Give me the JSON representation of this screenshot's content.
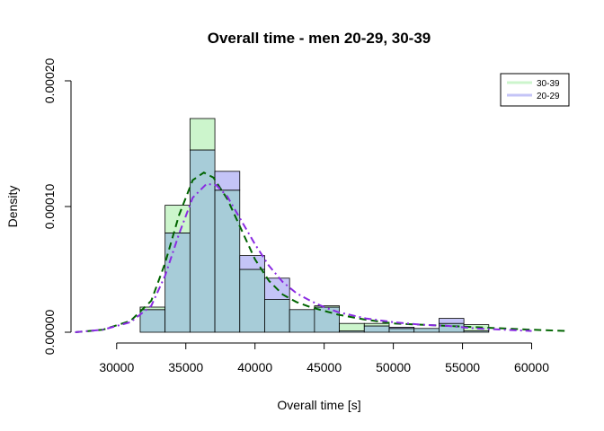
{
  "chart_data": {
    "type": "bar",
    "title": "Overall time - men 20-29, 30-39",
    "xlabel": "Overall time [s]",
    "ylabel": "Density",
    "xlim": [
      26700,
      62500
    ],
    "ylim": [
      0,
      0.0002
    ],
    "x_ticks": [
      30000,
      35000,
      40000,
      45000,
      50000,
      55000,
      60000
    ],
    "x_tick_labels": [
      "30000",
      "35000",
      "40000",
      "45000",
      "50000",
      "55000",
      "60000"
    ],
    "y_ticks": [
      0,
      0.0001,
      0.0002
    ],
    "y_tick_labels": [
      "0.00000",
      "0.00010",
      "0.00020"
    ],
    "grid": false,
    "legend_position": "top-right",
    "bin_width": 1800,
    "bin_start": 31700,
    "series": [
      {
        "name": "30-39",
        "color": "#ccf5cc",
        "density_color": "#006400",
        "values": [
          2e-05,
          0.000101,
          0.00017,
          0.000113,
          5e-05,
          2.6e-05,
          1.8e-05,
          2.1e-05,
          7e-06,
          7e-06,
          3e-06,
          3e-06,
          7e-06,
          6e-06
        ]
      },
      {
        "name": "20-29",
        "color": "#c4c4f7",
        "density_color": "#8a2be2",
        "values": [
          1.8e-05,
          7.9e-05,
          0.000145,
          0.000128,
          6.1e-05,
          4.3e-05,
          1.8e-05,
          2e-05,
          1e-06,
          5e-06,
          4e-06,
          3e-06,
          1.1e-05,
          1e-06
        ]
      }
    ],
    "overlap_color": "#a7ccd8",
    "density_curves": [
      {
        "series": "30-39",
        "style": "dashed",
        "x": [
          27000,
          29000,
          31000,
          32500,
          33500,
          34500,
          35500,
          36300,
          37000,
          38000,
          39000,
          40000,
          41000,
          42000,
          43000,
          44000,
          45000,
          46000,
          48000,
          50000,
          52000,
          54000,
          56000,
          58000,
          60000,
          62500
        ],
        "y": [
          0.0,
          2e-06,
          9e-06,
          2.5e-05,
          5.5e-05,
          9.3e-05,
          0.000121,
          0.000127,
          0.000123,
          0.000106,
          8.2e-05,
          5.8e-05,
          4.1e-05,
          3e-05,
          2.4e-05,
          2e-05,
          1.7e-05,
          1.4e-05,
          1e-05,
          7e-06,
          6e-06,
          5e-06,
          4e-06,
          3e-06,
          2e-06,
          1e-06
        ]
      },
      {
        "series": "20-29",
        "style": "dotdash",
        "x": [
          27000,
          29000,
          31000,
          32500,
          33500,
          34500,
          35500,
          36500,
          37200,
          38000,
          39000,
          40000,
          41000,
          42000,
          43000,
          44000,
          45000,
          46000,
          48000,
          50000,
          52000,
          54000,
          56000,
          58000,
          60000
        ],
        "y": [
          0.0,
          2e-06,
          8e-06,
          2.1e-05,
          4.5e-05,
          7.8e-05,
          0.000107,
          0.000118,
          0.000117,
          0.000108,
          8.9e-05,
          7e-05,
          5.3e-05,
          4e-05,
          3.1e-05,
          2.5e-05,
          2e-05,
          1.6e-05,
          1.1e-05,
          8e-06,
          6e-06,
          5e-06,
          3e-06,
          2e-06,
          1e-06
        ]
      }
    ]
  }
}
